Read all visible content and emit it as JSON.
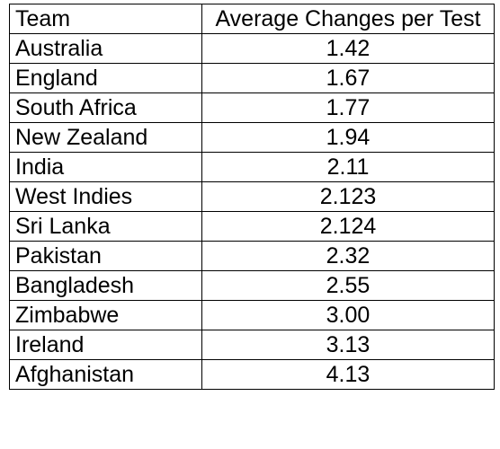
{
  "table": {
    "headers": {
      "team": "Team",
      "average": "Average Changes per Test"
    },
    "rows": [
      {
        "team": "Australia",
        "average": "1.42"
      },
      {
        "team": "England",
        "average": "1.67"
      },
      {
        "team": "South Africa",
        "average": "1.77"
      },
      {
        "team": "New Zealand",
        "average": "1.94"
      },
      {
        "team": "India",
        "average": "2.11"
      },
      {
        "team": "West Indies",
        "average": "2.123"
      },
      {
        "team": "Sri Lanka",
        "average": "2.124"
      },
      {
        "team": "Pakistan",
        "average": "2.32"
      },
      {
        "team": "Bangladesh",
        "average": "2.55"
      },
      {
        "team": "Zimbabwe",
        "average": "3.00"
      },
      {
        "team": "Ireland",
        "average": "3.13"
      },
      {
        "team": "Afghanistan",
        "average": "4.13"
      }
    ]
  }
}
